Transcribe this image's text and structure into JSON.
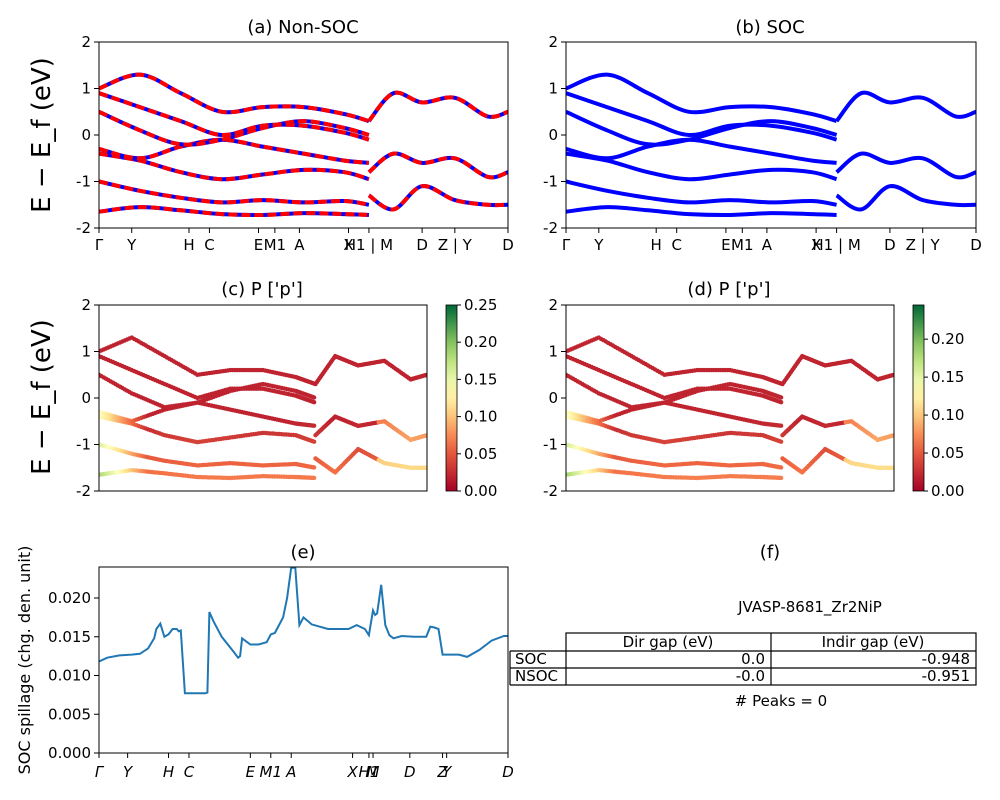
{
  "figure": {
    "panels": {
      "a": {
        "title": "(a) Non-SOC"
      },
      "b": {
        "title": "(b) SOC"
      },
      "c": {
        "title": "(c)  P ['p']"
      },
      "d": {
        "title": "(d) P ['p']"
      },
      "e": {
        "title": "(e)"
      },
      "f": {
        "title": "(f)"
      }
    },
    "band_ylabel": "E − E_f (eV)",
    "spillage_ylabel": "SOC spillage (chg. den. unit)",
    "band_kpath_ab": [
      "Γ",
      "Y",
      "H",
      "C",
      "E",
      "M1",
      "A",
      "X",
      "H1 | M",
      "D",
      "Z | Y",
      "D"
    ],
    "band_kpath_cd": [
      "Γ",
      "Y",
      "H",
      "C",
      "E",
      "M1",
      "A",
      "X",
      "H1 | M",
      "D",
      "Z | Y",
      "D"
    ],
    "colors": {
      "nonsoc_line": "#ff0000",
      "nonsoc_dash": "#0000ff",
      "soc_line": "#0000ff",
      "spillage_line": "#1f77b4"
    },
    "colormap": "RdYlGn"
  },
  "info_box": {
    "material": "JVASP-8681_Zr2NiP",
    "table": {
      "col_headers": [
        "Dir gap (eV)",
        "Indir gap (eV)"
      ],
      "rows": [
        {
          "label": "SOC",
          "dir": "0.0",
          "indir": "-0.948"
        },
        {
          "label": "NSOC",
          "dir": "-0.0",
          "indir": "-0.951"
        }
      ]
    },
    "peaks": "# Peaks = 0"
  },
  "chart_data": [
    {
      "type": "line",
      "panel": "a",
      "title": "(a) Non-SOC",
      "ylim": [
        -2,
        2
      ],
      "yticks": [
        -2,
        -1,
        0,
        1,
        2
      ],
      "ylabel": "E − E_f (eV)",
      "xticks": [
        "Γ",
        "Y",
        "H",
        "C",
        "E",
        "M1",
        "A",
        "X",
        "H1 | M",
        "D",
        "Z | Y",
        "D"
      ],
      "x_tick_positions": [
        0,
        0.08,
        0.22,
        0.27,
        0.39,
        0.43,
        0.49,
        0.61,
        0.66,
        0.79,
        0.87,
        1.0
      ],
      "bands": [
        {
          "x": [
            0,
            0.1,
            0.2,
            0.3,
            0.4,
            0.5,
            0.6,
            0.66
          ],
          "y": [
            -1.65,
            -1.55,
            -1.62,
            -1.7,
            -1.72,
            -1.68,
            -1.7,
            -1.72
          ]
        },
        {
          "x": [
            0,
            0.1,
            0.2,
            0.3,
            0.4,
            0.5,
            0.6,
            0.66
          ],
          "y": [
            -1.0,
            -1.2,
            -1.35,
            -1.45,
            -1.4,
            -1.45,
            -1.42,
            -1.5
          ]
        },
        {
          "x": [
            0,
            0.1,
            0.2,
            0.3,
            0.4,
            0.5,
            0.6,
            0.66
          ],
          "y": [
            -0.4,
            -0.55,
            -0.8,
            -0.95,
            -0.85,
            -0.75,
            -0.8,
            -0.95
          ]
        },
        {
          "x": [
            0,
            0.1,
            0.2,
            0.3,
            0.4,
            0.5,
            0.6,
            0.66
          ],
          "y": [
            -0.3,
            -0.5,
            -0.25,
            -0.1,
            -0.25,
            -0.4,
            -0.55,
            -0.6
          ]
        },
        {
          "x": [
            0,
            0.1,
            0.2,
            0.3,
            0.4,
            0.5,
            0.6,
            0.66
          ],
          "y": [
            0.5,
            0.1,
            -0.2,
            -0.1,
            0.15,
            0.3,
            0.15,
            0.0
          ]
        },
        {
          "x": [
            0,
            0.1,
            0.2,
            0.3,
            0.4,
            0.5,
            0.6,
            0.66
          ],
          "y": [
            0.9,
            0.6,
            0.3,
            0.0,
            0.2,
            0.2,
            0.05,
            -0.1
          ]
        },
        {
          "x": [
            0,
            0.1,
            0.2,
            0.3,
            0.4,
            0.5,
            0.6,
            0.66
          ],
          "y": [
            1.0,
            1.3,
            0.9,
            0.5,
            0.6,
            0.6,
            0.45,
            0.3
          ]
        },
        {
          "x": [
            0.66,
            0.72,
            0.79,
            0.87,
            0.95,
            1.0
          ],
          "y": [
            0.3,
            0.9,
            0.7,
            0.8,
            0.4,
            0.5
          ]
        },
        {
          "x": [
            0.66,
            0.72,
            0.79,
            0.87,
            0.95,
            1.0
          ],
          "y": [
            -0.8,
            -0.4,
            -0.6,
            -0.5,
            -0.9,
            -0.8
          ]
        },
        {
          "x": [
            0.66,
            0.72,
            0.79,
            0.87,
            0.95,
            1.0
          ],
          "y": [
            -1.3,
            -1.6,
            -1.1,
            -1.4,
            -1.5,
            -1.5
          ]
        }
      ]
    },
    {
      "type": "line",
      "panel": "b",
      "title": "(b) SOC",
      "ylim": [
        -2,
        2
      ],
      "yticks": [
        -2,
        -1,
        0,
        1,
        2
      ],
      "xticks": [
        "Γ",
        "Y",
        "H",
        "C",
        "E",
        "M1",
        "A",
        "X",
        "H1 | M",
        "D",
        "Z | Y",
        "D"
      ],
      "x_tick_positions": [
        0,
        0.08,
        0.22,
        0.27,
        0.39,
        0.43,
        0.49,
        0.61,
        0.66,
        0.79,
        0.87,
        1.0
      ],
      "bands": [
        {
          "x": [
            0,
            0.1,
            0.2,
            0.3,
            0.4,
            0.5,
            0.6,
            0.66
          ],
          "y": [
            -1.65,
            -1.55,
            -1.62,
            -1.7,
            -1.72,
            -1.68,
            -1.7,
            -1.72
          ]
        },
        {
          "x": [
            0,
            0.1,
            0.2,
            0.3,
            0.4,
            0.5,
            0.6,
            0.66
          ],
          "y": [
            -1.0,
            -1.2,
            -1.35,
            -1.45,
            -1.4,
            -1.45,
            -1.42,
            -1.5
          ]
        },
        {
          "x": [
            0,
            0.1,
            0.2,
            0.3,
            0.4,
            0.5,
            0.6,
            0.66
          ],
          "y": [
            -0.4,
            -0.55,
            -0.8,
            -0.95,
            -0.85,
            -0.75,
            -0.8,
            -0.95
          ]
        },
        {
          "x": [
            0,
            0.1,
            0.2,
            0.3,
            0.4,
            0.5,
            0.6,
            0.66
          ],
          "y": [
            -0.3,
            -0.5,
            -0.25,
            -0.1,
            -0.25,
            -0.4,
            -0.55,
            -0.6
          ]
        },
        {
          "x": [
            0,
            0.1,
            0.2,
            0.3,
            0.4,
            0.5,
            0.6,
            0.66
          ],
          "y": [
            0.5,
            0.1,
            -0.2,
            -0.1,
            0.15,
            0.3,
            0.15,
            0.0
          ]
        },
        {
          "x": [
            0,
            0.1,
            0.2,
            0.3,
            0.4,
            0.5,
            0.6,
            0.66
          ],
          "y": [
            0.9,
            0.6,
            0.3,
            0.0,
            0.2,
            0.2,
            0.05,
            -0.1
          ]
        },
        {
          "x": [
            0,
            0.1,
            0.2,
            0.3,
            0.4,
            0.5,
            0.6,
            0.66
          ],
          "y": [
            1.0,
            1.3,
            0.9,
            0.5,
            0.6,
            0.6,
            0.45,
            0.3
          ]
        },
        {
          "x": [
            0.66,
            0.72,
            0.79,
            0.87,
            0.95,
            1.0
          ],
          "y": [
            0.3,
            0.9,
            0.7,
            0.8,
            0.4,
            0.5
          ]
        },
        {
          "x": [
            0.66,
            0.72,
            0.79,
            0.87,
            0.95,
            1.0
          ],
          "y": [
            -0.8,
            -0.4,
            -0.6,
            -0.5,
            -0.9,
            -0.8
          ]
        },
        {
          "x": [
            0.66,
            0.72,
            0.79,
            0.87,
            0.95,
            1.0
          ],
          "y": [
            -1.3,
            -1.6,
            -1.1,
            -1.4,
            -1.5,
            -1.5
          ]
        }
      ]
    },
    {
      "type": "scatter",
      "panel": "c",
      "title": "(c)  P ['p']",
      "ylim": [
        -2,
        2
      ],
      "yticks": [
        -2,
        -1,
        0,
        1,
        2
      ],
      "colorbar": {
        "range": [
          0,
          0.25
        ],
        "ticks": [
          "0.00",
          "0.05",
          "0.10",
          "0.15",
          "0.20",
          "0.25"
        ]
      }
    },
    {
      "type": "scatter",
      "panel": "d",
      "title": "(d) P ['p']",
      "ylim": [
        -2,
        2
      ],
      "yticks": [
        -2,
        -1,
        0,
        1,
        2
      ],
      "colorbar": {
        "range": [
          0,
          0.245
        ],
        "ticks": [
          "0.00",
          "0.05",
          "0.10",
          "0.15",
          "0.20"
        ]
      }
    },
    {
      "type": "line",
      "panel": "e",
      "title": "(e)",
      "ylabel": "SOC spillage (chg. den. unit)",
      "ylim": [
        0,
        0.024
      ],
      "yticks": [
        "0.000",
        "0.005",
        "0.010",
        "0.015",
        "0.020"
      ],
      "xticks": [
        "Γ",
        "Y",
        "H",
        "C",
        "E",
        "M1",
        "A",
        "X",
        "H1",
        "M",
        "D",
        "Z",
        "Y",
        "D"
      ],
      "x_tick_positions": [
        0,
        0.07,
        0.17,
        0.22,
        0.37,
        0.42,
        0.47,
        0.62,
        0.66,
        0.67,
        0.76,
        0.84,
        0.85,
        1.0
      ],
      "series": [
        {
          "x": [
            0,
            0.02,
            0.05,
            0.08,
            0.1,
            0.12,
            0.135,
            0.14,
            0.15,
            0.16,
            0.17,
            0.18,
            0.19,
            0.195,
            0.2,
            0.21,
            0.22,
            0.235,
            0.25,
            0.26,
            0.265,
            0.27,
            0.28,
            0.3,
            0.33,
            0.34,
            0.345,
            0.35,
            0.37,
            0.39,
            0.41,
            0.42,
            0.43,
            0.45,
            0.46,
            0.47,
            0.48,
            0.49,
            0.5,
            0.52,
            0.56,
            0.59,
            0.61,
            0.63,
            0.65,
            0.66,
            0.67,
            0.675,
            0.68,
            0.69,
            0.7,
            0.71,
            0.72,
            0.74,
            0.77,
            0.8,
            0.81,
            0.82,
            0.83,
            0.84,
            0.85,
            0.86,
            0.88,
            0.9,
            0.93,
            0.96,
            0.99,
            1.0
          ],
          "y": [
            0.0118,
            0.0123,
            0.0126,
            0.0127,
            0.0128,
            0.0135,
            0.0148,
            0.016,
            0.0167,
            0.015,
            0.0153,
            0.016,
            0.016,
            0.0157,
            0.0158,
            0.0077,
            0.0077,
            0.0077,
            0.0077,
            0.0077,
            0.0078,
            0.0182,
            0.017,
            0.015,
            0.013,
            0.0123,
            0.0125,
            0.0148,
            0.014,
            0.014,
            0.0143,
            0.0153,
            0.0155,
            0.0175,
            0.02,
            0.0239,
            0.0239,
            0.0165,
            0.0175,
            0.0166,
            0.016,
            0.016,
            0.016,
            0.0165,
            0.016,
            0.0152,
            0.0184,
            0.0178,
            0.018,
            0.0217,
            0.0165,
            0.0152,
            0.0148,
            0.0151,
            0.015,
            0.015,
            0.0163,
            0.0162,
            0.016,
            0.0127,
            0.0127,
            0.0127,
            0.0127,
            0.0124,
            0.0133,
            0.0145,
            0.0151,
            0.0151
          ]
        }
      ]
    }
  ]
}
